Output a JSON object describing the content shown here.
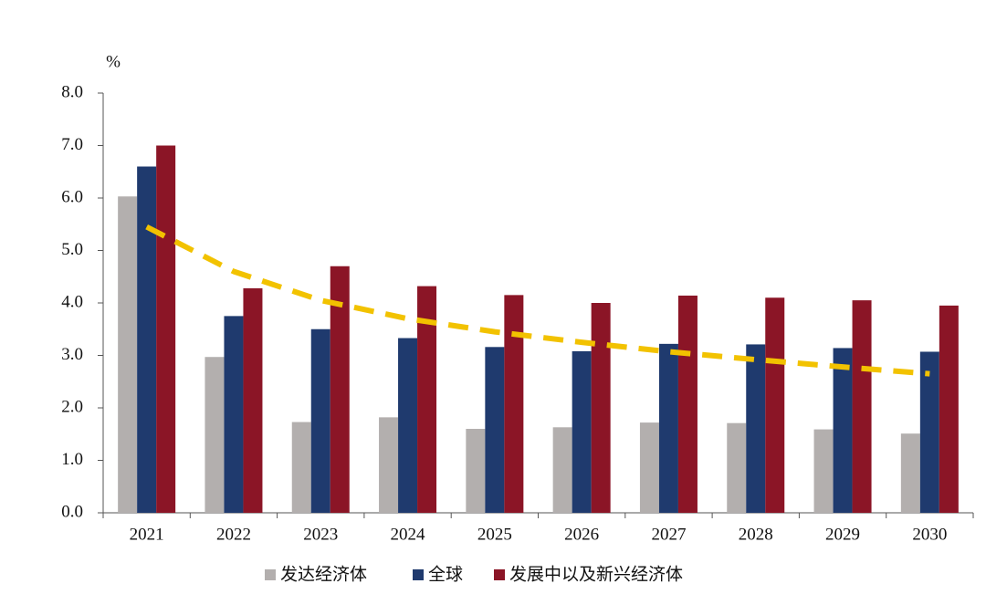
{
  "chart_data": {
    "type": "bar",
    "y_label": "%",
    "categories": [
      "2021",
      "2022",
      "2023",
      "2024",
      "2025",
      "2026",
      "2027",
      "2028",
      "2029",
      "2030"
    ],
    "series": [
      {
        "name": "发达经济体",
        "color": "#b3afae",
        "values": [
          6.03,
          2.97,
          1.73,
          1.82,
          1.6,
          1.63,
          1.72,
          1.71,
          1.59,
          1.51
        ]
      },
      {
        "name": "全球",
        "color": "#1f3a6e",
        "values": [
          6.6,
          3.75,
          3.5,
          3.33,
          3.16,
          3.08,
          3.22,
          3.21,
          3.14,
          3.07
        ]
      },
      {
        "name": "发展中以及新兴经济体",
        "color": "#8b1526",
        "values": [
          7.0,
          4.28,
          4.7,
          4.32,
          4.15,
          4.0,
          4.14,
          4.1,
          4.05,
          3.95
        ]
      }
    ],
    "trendline": {
      "color": "#f2c200",
      "values": [
        5.45,
        4.6,
        4.05,
        3.7,
        3.45,
        3.25,
        3.07,
        2.92,
        2.78,
        2.65
      ]
    },
    "ylim": [
      0,
      8
    ],
    "yticks": [
      {
        "value": 0,
        "label": "0.0"
      },
      {
        "value": 1,
        "label": "1.0"
      },
      {
        "value": 2,
        "label": "2.0"
      },
      {
        "value": 3,
        "label": "3.0"
      },
      {
        "value": 4,
        "label": "4.0"
      },
      {
        "value": 5,
        "label": "5.0"
      },
      {
        "value": 6,
        "label": "6.0"
      },
      {
        "value": 7,
        "label": "7.0"
      },
      {
        "value": 8,
        "label": "8.0"
      }
    ],
    "grid": false
  }
}
